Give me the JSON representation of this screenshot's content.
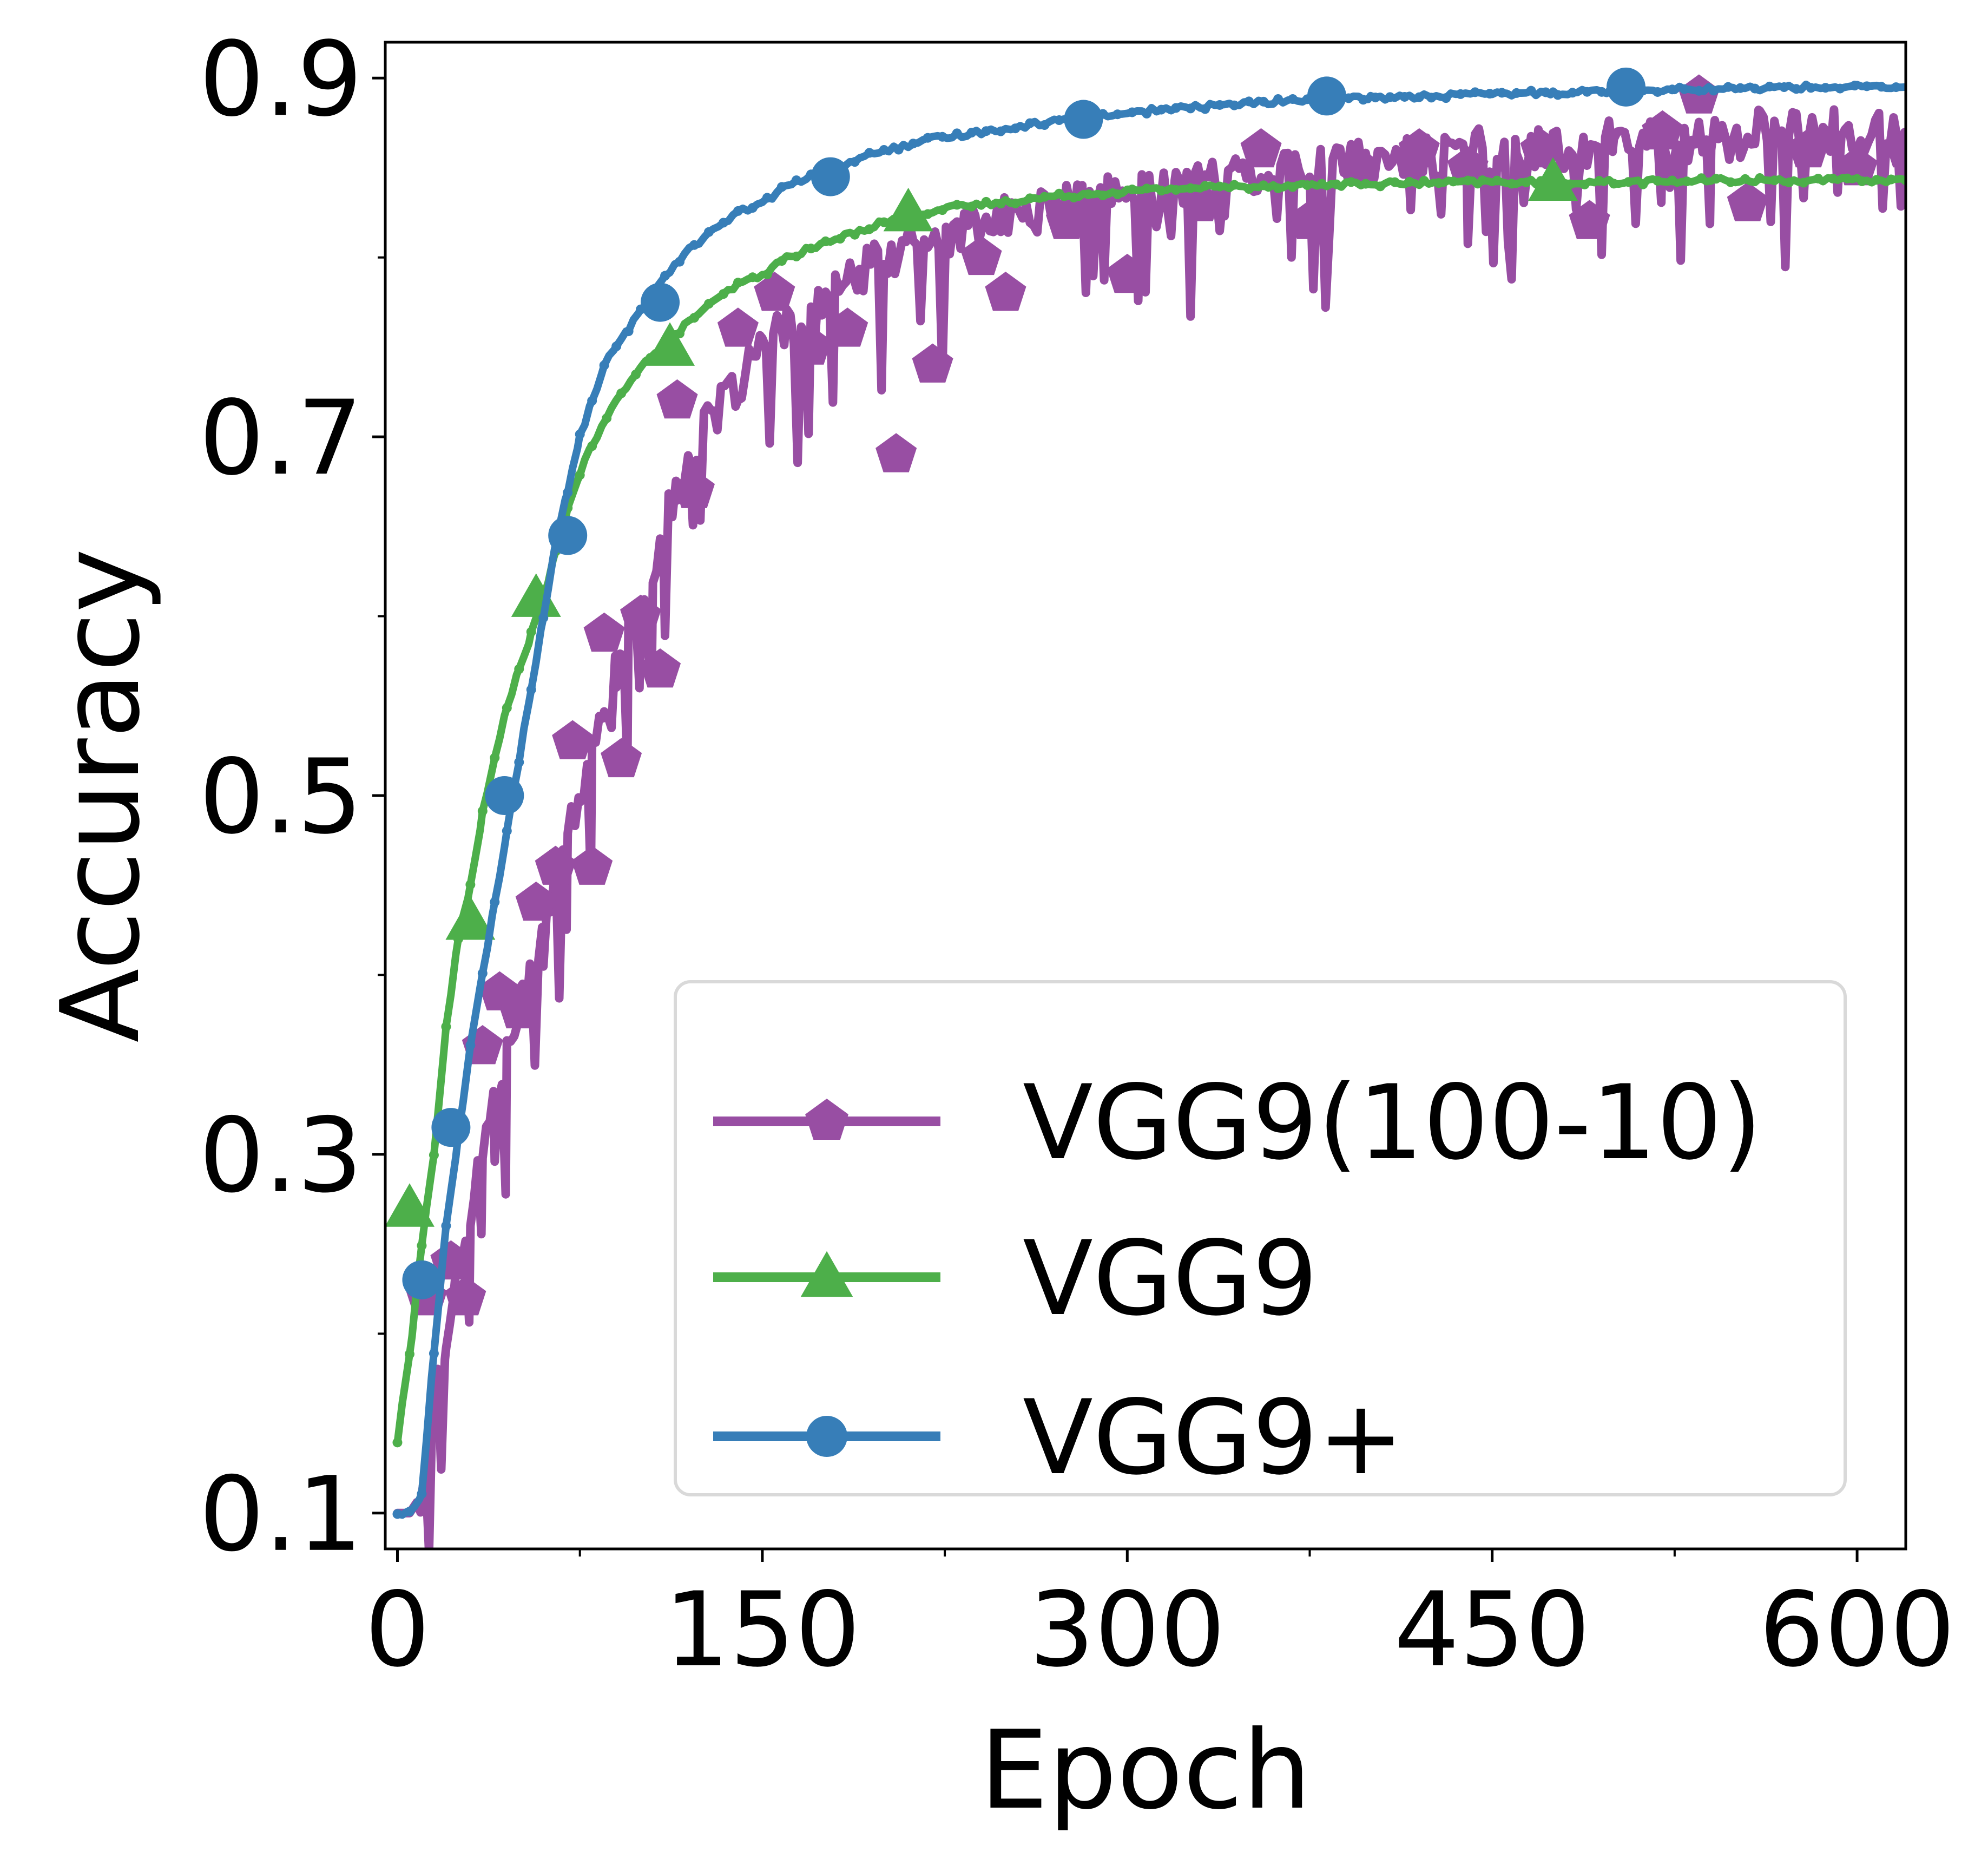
{
  "chart_data": {
    "type": "line",
    "xlabel": "Epoch",
    "ylabel": "Accuracy",
    "xlim": [
      -5,
      620
    ],
    "ylim": [
      0.08,
      0.92
    ],
    "x_ticks": [
      0,
      150,
      300,
      450,
      600
    ],
    "x_tick_labels": [
      "0",
      "150",
      "300",
      "450",
      "600"
    ],
    "x_minor_ticks": [
      75,
      225,
      375,
      525
    ],
    "y_ticks": [
      0.1,
      0.3,
      0.5,
      0.7,
      0.9
    ],
    "y_tick_labels": [
      "0.1",
      "0.3",
      "0.5",
      "0.7",
      "0.9"
    ],
    "y_minor_ticks": [
      0.2,
      0.4,
      0.6,
      0.8
    ],
    "grid": false,
    "legend_position": "lower-right",
    "series": [
      {
        "name": "VGG9(100-10)",
        "color": "#984ea3",
        "marker": "pentagon",
        "noisy": true,
        "x": [
          0,
          5,
          10,
          15,
          20,
          25,
          30,
          35,
          40,
          45,
          50,
          55,
          60,
          65,
          70,
          75,
          80,
          85,
          90,
          95,
          100,
          105,
          110,
          115,
          120,
          130,
          140,
          150,
          160,
          170,
          180,
          190,
          200,
          215,
          230,
          245,
          260,
          280,
          300,
          320,
          340,
          360,
          380,
          400,
          420,
          440,
          460,
          480,
          500,
          520,
          540,
          560,
          580,
          600,
          620
        ],
        "y": [
          0.1,
          0.1,
          0.11,
          0.18,
          0.2,
          0.24,
          0.27,
          0.3,
          0.33,
          0.36,
          0.38,
          0.4,
          0.43,
          0.45,
          0.48,
          0.5,
          0.52,
          0.55,
          0.57,
          0.59,
          0.61,
          0.63,
          0.65,
          0.67,
          0.69,
          0.71,
          0.73,
          0.75,
          0.76,
          0.77,
          0.78,
          0.79,
          0.8,
          0.81,
          0.815,
          0.82,
          0.825,
          0.83,
          0.835,
          0.84,
          0.845,
          0.85,
          0.85,
          0.855,
          0.855,
          0.86,
          0.86,
          0.86,
          0.865,
          0.865,
          0.865,
          0.87,
          0.87,
          0.87,
          0.87
        ],
        "marker_points": [
          [
            12,
            0.22
          ],
          [
            22,
            0.24
          ],
          [
            28,
            0.22
          ],
          [
            35,
            0.36
          ],
          [
            42,
            0.39
          ],
          [
            50,
            0.38
          ],
          [
            57,
            0.44
          ],
          [
            65,
            0.46
          ],
          [
            72,
            0.53
          ],
          [
            80,
            0.46
          ],
          [
            85,
            0.59
          ],
          [
            92,
            0.52
          ],
          [
            100,
            0.6
          ],
          [
            108,
            0.57
          ],
          [
            115,
            0.72
          ],
          [
            122,
            0.67
          ],
          [
            140,
            0.76
          ],
          [
            155,
            0.78
          ],
          [
            170,
            0.75
          ],
          [
            185,
            0.76
          ],
          [
            205,
            0.69
          ],
          [
            220,
            0.74
          ],
          [
            240,
            0.8
          ],
          [
            250,
            0.78
          ],
          [
            275,
            0.82
          ],
          [
            300,
            0.79
          ],
          [
            330,
            0.83
          ],
          [
            355,
            0.86
          ],
          [
            375,
            0.82
          ],
          [
            395,
            0.85
          ],
          [
            420,
            0.86
          ],
          [
            440,
            0.85
          ],
          [
            470,
            0.86
          ],
          [
            490,
            0.82
          ],
          [
            520,
            0.87
          ],
          [
            535,
            0.89
          ],
          [
            555,
            0.83
          ],
          [
            580,
            0.86
          ],
          [
            600,
            0.85
          ],
          [
            620,
            0.86
          ]
        ]
      },
      {
        "name": "VGG9",
        "color": "#4daf4a",
        "marker": "triangle",
        "noisy": false,
        "x": [
          0,
          3,
          6,
          10,
          15,
          20,
          25,
          30,
          35,
          40,
          45,
          50,
          55,
          60,
          65,
          70,
          75,
          80,
          90,
          100,
          110,
          120,
          130,
          140,
          150,
          160,
          170,
          180,
          190,
          200,
          210,
          220,
          230,
          250,
          270,
          300,
          330,
          360,
          400,
          450,
          500,
          550,
          600,
          620
        ],
        "y": [
          0.14,
          0.17,
          0.2,
          0.25,
          0.3,
          0.37,
          0.42,
          0.45,
          0.49,
          0.52,
          0.55,
          0.57,
          0.59,
          0.61,
          0.635,
          0.66,
          0.68,
          0.695,
          0.72,
          0.74,
          0.75,
          0.765,
          0.775,
          0.785,
          0.79,
          0.8,
          0.805,
          0.81,
          0.815,
          0.82,
          0.823,
          0.826,
          0.828,
          0.831,
          0.834,
          0.837,
          0.839,
          0.84,
          0.841,
          0.842,
          0.842,
          0.843,
          0.843,
          0.843
        ],
        "marker_points": [
          [
            5,
            0.27
          ],
          [
            30,
            0.43
          ],
          [
            57,
            0.61
          ],
          [
            112,
            0.75
          ],
          [
            210,
            0.825
          ],
          [
            475,
            0.842
          ]
        ]
      },
      {
        "name": "VGG9+",
        "color": "#377eb8",
        "marker": "circle",
        "noisy": false,
        "x": [
          0,
          5,
          10,
          15,
          20,
          25,
          30,
          35,
          40,
          45,
          50,
          55,
          60,
          65,
          70,
          75,
          80,
          85,
          90,
          95,
          100,
          105,
          110,
          120,
          130,
          140,
          150,
          160,
          170,
          180,
          190,
          200,
          210,
          220,
          230,
          250,
          270,
          290,
          310,
          330,
          350,
          375,
          400,
          425,
          450,
          475,
          500,
          525,
          550,
          575,
          600,
          620
        ],
        "y": [
          0.1,
          0.1,
          0.11,
          0.19,
          0.26,
          0.31,
          0.36,
          0.4,
          0.44,
          0.48,
          0.52,
          0.56,
          0.6,
          0.64,
          0.67,
          0.7,
          0.72,
          0.74,
          0.75,
          0.76,
          0.77,
          0.78,
          0.79,
          0.805,
          0.815,
          0.825,
          0.83,
          0.84,
          0.845,
          0.85,
          0.855,
          0.86,
          0.862,
          0.866,
          0.868,
          0.872,
          0.876,
          0.879,
          0.882,
          0.884,
          0.886,
          0.888,
          0.889,
          0.89,
          0.891,
          0.892,
          0.893,
          0.894,
          0.894,
          0.895,
          0.895,
          0.895
        ],
        "marker_points": [
          [
            10,
            0.23
          ],
          [
            22,
            0.315
          ],
          [
            44,
            0.5
          ],
          [
            70,
            0.645
          ],
          [
            108,
            0.775
          ],
          [
            178,
            0.845
          ],
          [
            282,
            0.877
          ],
          [
            382,
            0.89
          ],
          [
            505,
            0.895
          ]
        ]
      }
    ]
  }
}
